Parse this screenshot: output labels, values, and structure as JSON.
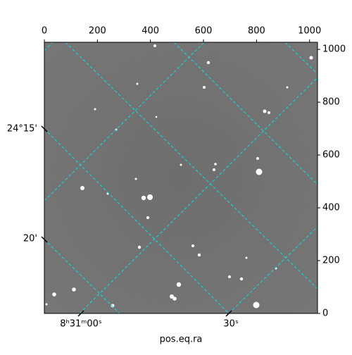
{
  "chart_data": {
    "type": "image",
    "xlabel": "pos.eq.ra",
    "xlim": [
      0,
      1030
    ],
    "xticks": [
      0,
      200,
      400,
      600,
      800,
      1000
    ],
    "ylim": [
      0,
      1027
    ],
    "yticks": [
      0,
      200,
      400,
      600,
      800,
      1000
    ],
    "ra_tick_labels": [
      "8ʰ31ᵐ00ˢ",
      "30ˢ"
    ],
    "dec_tick_labels": [
      "24°15'",
      "20'"
    ],
    "grid_color": "#00e5e5"
  }
}
